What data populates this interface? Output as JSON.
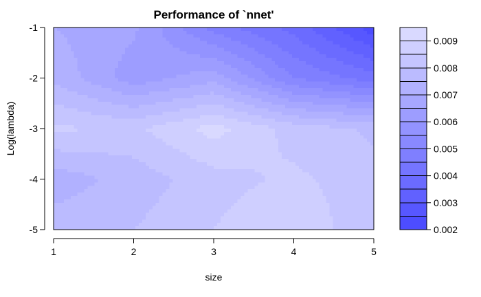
{
  "chart_data": {
    "type": "heatmap",
    "title": "Performance of `nnet'",
    "xlabel": "size",
    "ylabel": "Log(lambda)",
    "x": [
      1,
      2,
      3,
      4,
      5
    ],
    "y": [
      -5,
      -4,
      -3,
      -2,
      -1
    ],
    "xlim": [
      1,
      5
    ],
    "ylim": [
      -5,
      -1
    ],
    "x_ticks": [
      "1",
      "2",
      "3",
      "4",
      "5"
    ],
    "y_ticks": [
      "-5",
      "-4",
      "-3",
      "-2",
      "-1"
    ],
    "z_matrix_rows_by_y_bottom_to_top": [
      [
        0.0078,
        0.008,
        0.0085,
        0.009,
        0.008
      ],
      [
        0.0072,
        0.0077,
        0.0083,
        0.0086,
        0.0082
      ],
      [
        0.0086,
        0.0084,
        0.0092,
        0.0083,
        0.0079
      ],
      [
        0.0074,
        0.0062,
        0.0068,
        0.005,
        0.0042
      ],
      [
        0.007,
        0.0066,
        0.0048,
        0.0038,
        0.0022
      ]
    ],
    "legend": {
      "position": "right",
      "min": 0.002,
      "max": 0.0095,
      "levels": 15,
      "tick_labels": [
        "0.002",
        "0.003",
        "0.004",
        "0.005",
        "0.006",
        "0.007",
        "0.008",
        "0.009"
      ],
      "tick_values": [
        0.002,
        0.003,
        0.004,
        0.005,
        0.006,
        0.007,
        0.008,
        0.009
      ]
    },
    "color_low": "#4d4dff",
    "color_high": "#d9d9ff",
    "grid": false
  }
}
